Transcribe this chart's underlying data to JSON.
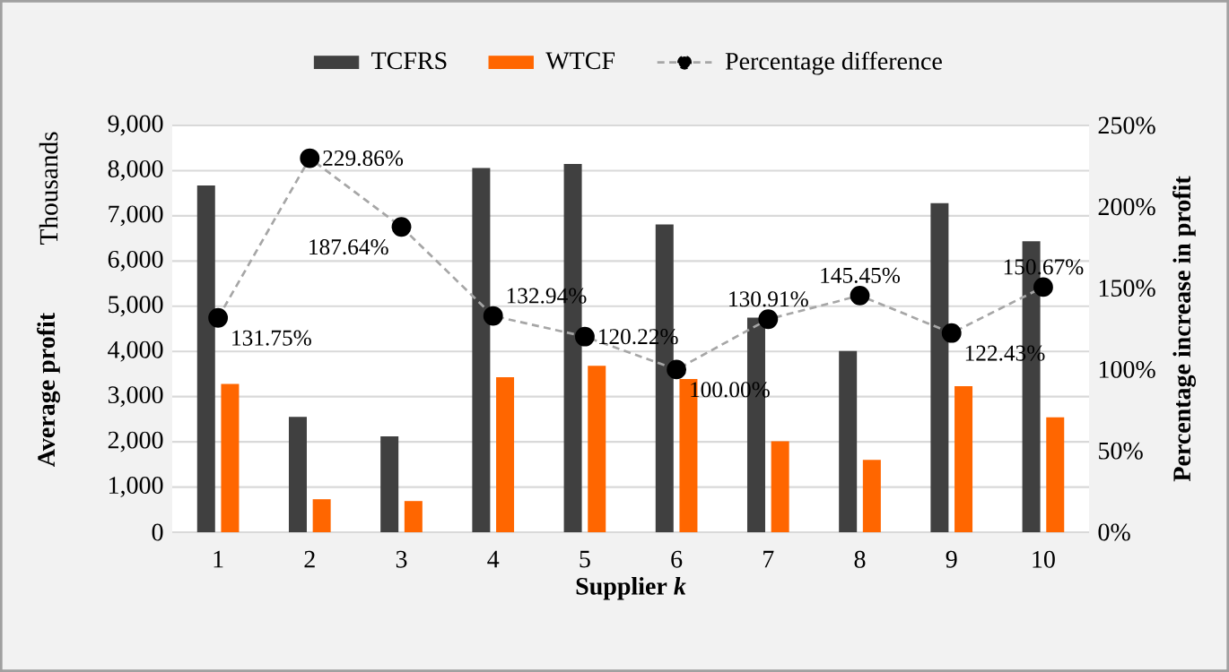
{
  "chart_data": {
    "type": "bar",
    "xlabel": "Supplier *k*",
    "ylabel": "Average profit",
    "y2label": "Percentage increase in profit",
    "categories": [
      "1",
      "2",
      "3",
      "4",
      "5",
      "6",
      "7",
      "8",
      "9",
      "10"
    ],
    "series": [
      {
        "name": "TCFRS",
        "color": "#404040",
        "values": [
          7670,
          2550,
          2120,
          8060,
          8150,
          6810,
          4750,
          4010,
          7280,
          6440
        ]
      },
      {
        "name": "WTCF",
        "color": "#ff6600",
        "values": [
          3280,
          730,
          690,
          3430,
          3680,
          3390,
          2010,
          1600,
          3230,
          2540
        ]
      },
      {
        "name": "Percentage difference",
        "type": "line",
        "axis": "y2",
        "color": "#a6a6a6",
        "marker": "circle",
        "line_style": "dashed",
        "values": [
          131.75,
          229.86,
          187.64,
          132.94,
          120.22,
          100.0,
          130.91,
          145.45,
          122.43,
          150.67
        ],
        "value_labels": [
          "131.75%",
          "229.86%",
          "187.64%",
          "132.94%",
          "120.22%",
          "100.00%",
          "130.91%",
          "145.45%",
          "122.43%",
          "150.67%"
        ]
      }
    ],
    "ylim": [
      0,
      9000
    ],
    "yticks": [
      {
        "value": 0,
        "label": "0"
      },
      {
        "value": 1000,
        "label": "1,000"
      },
      {
        "value": 2000,
        "label": "2,000"
      },
      {
        "value": 3000,
        "label": "3,000"
      },
      {
        "value": 4000,
        "label": "4,000"
      },
      {
        "value": 5000,
        "label": "5,000"
      },
      {
        "value": 6000,
        "label": "6,000"
      },
      {
        "value": 7000,
        "label": "7,000"
      },
      {
        "value": 8000,
        "label": "8,000"
      },
      {
        "value": 9000,
        "label": "9,000"
      }
    ],
    "y2lim": [
      0,
      250
    ],
    "y2ticks": [
      {
        "value": 0,
        "label": "0%"
      },
      {
        "value": 50,
        "label": "50%"
      },
      {
        "value": 100,
        "label": "100%"
      },
      {
        "value": 150,
        "label": "150%"
      },
      {
        "value": 200,
        "label": "200%"
      },
      {
        "value": 250,
        "label": "250%"
      }
    ],
    "annotations": [
      "Thousands"
    ],
    "grid": "y",
    "legend": "top"
  }
}
